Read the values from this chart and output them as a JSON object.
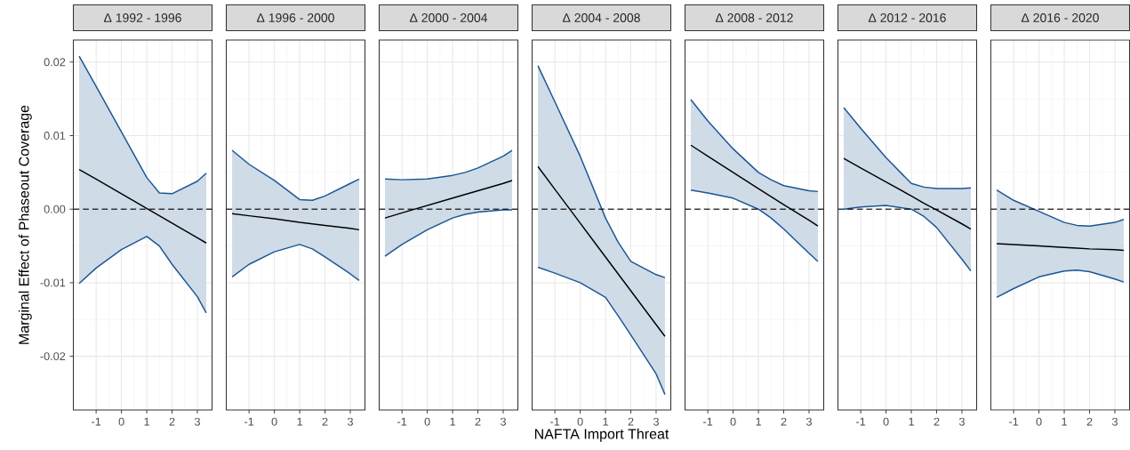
{
  "chart_data": [
    {
      "type": "line",
      "title": "Δ 1992 - 1996",
      "ylabel": "Marginal Effect of Phaseout Coverage",
      "x": [
        -1.67,
        -1,
        0,
        1,
        1.5,
        2,
        3,
        3.35
      ],
      "xlim": [
        -1.9,
        3.58
      ],
      "xticks": [
        -1,
        0,
        1,
        2,
        3
      ],
      "ylim": [
        -0.0273,
        0.023
      ],
      "yticks": [
        -0.02,
        -0.01,
        {
          "value": 0,
          "label": "0.00"
        },
        0.01,
        0.02
      ],
      "grid": true,
      "series": [
        {
          "color": "#000000",
          "values": [
            0.0054,
            0.0041,
            0.0021,
            0.0001,
            -0.0009,
            -0.0019,
            -0.0039,
            -0.0046
          ],
          "lower": [
            -0.0101,
            -0.008,
            -0.0055,
            -0.0037,
            -0.005,
            -0.0075,
            -0.0119,
            -0.0141
          ],
          "upper": [
            0.0208,
            0.0167,
            0.0105,
            0.0043,
            0.0022,
            0.0021,
            0.0038,
            0.0049
          ]
        },
        {
          "color": "#1a5694",
          "values": [
            0.0208,
            0.0167,
            0.0105,
            0.0043,
            0.0022,
            0.0021,
            0.0038,
            0.0049
          ]
        },
        {
          "color": "#1a5694",
          "values": [
            -0.0101,
            -0.008,
            -0.0055,
            -0.0037,
            -0.005,
            -0.0075,
            -0.0119,
            -0.0141
          ]
        }
      ],
      "ref_lines": [
        {
          "axis": "y",
          "value": 0,
          "color": "#000000",
          "line_style": "dashed"
        }
      ]
    },
    {
      "type": "line",
      "title": "Δ 1996 - 2000",
      "x": [
        -1.67,
        -1,
        0,
        1,
        1.5,
        2,
        3,
        3.35
      ],
      "xlim": [
        -1.9,
        3.58
      ],
      "xticks": [
        -1,
        0,
        1,
        2,
        3
      ],
      "ylim": [
        -0.0273,
        0.023
      ],
      "yticks": [
        -0.02,
        -0.01,
        0,
        0.01,
        0.02
      ],
      "grid": true,
      "tick_labels": "x",
      "series": [
        {
          "color": "#000000",
          "values": [
            -0.0006,
            -0.0009,
            -0.0013,
            -0.0018,
            -0.002,
            -0.0022,
            -0.0026,
            -0.0028
          ],
          "lower": [
            -0.0092,
            -0.0075,
            -0.0058,
            -0.0048,
            -0.0054,
            -0.0065,
            -0.0088,
            -0.0097
          ],
          "upper": [
            0.008,
            0.0061,
            0.0039,
            0.0013,
            0.0012,
            0.0018,
            0.0035,
            0.0041
          ]
        },
        {
          "color": "#1a5694",
          "values": [
            0.008,
            0.0061,
            0.0039,
            0.0013,
            0.0012,
            0.0018,
            0.0035,
            0.0041
          ]
        },
        {
          "color": "#1a5694",
          "values": [
            -0.0092,
            -0.0075,
            -0.0058,
            -0.0048,
            -0.0054,
            -0.0065,
            -0.0088,
            -0.0097
          ]
        }
      ],
      "ref_lines": [
        {
          "axis": "y",
          "value": 0,
          "color": "#000000",
          "line_style": "dashed"
        }
      ]
    },
    {
      "type": "line",
      "title": "Δ 2000 - 2004",
      "x": [
        -1.67,
        -1,
        0,
        1,
        1.5,
        2,
        3,
        3.35
      ],
      "xlim": [
        -1.9,
        3.58
      ],
      "xticks": [
        -1,
        0,
        1,
        2,
        3
      ],
      "ylim": [
        -0.0273,
        0.023
      ],
      "yticks": [
        -0.02,
        -0.01,
        0,
        0.01,
        0.02
      ],
      "grid": true,
      "tick_labels": "x",
      "series": [
        {
          "color": "#000000",
          "values": [
            -0.0012,
            -0.0005,
            0.0005,
            0.0015,
            0.002,
            0.0025,
            0.0035,
            0.0039
          ],
          "lower": [
            -0.0064,
            -0.0048,
            -0.0028,
            -0.0012,
            -0.0007,
            -0.0004,
            -0.0001,
            -0.0001
          ],
          "upper": [
            0.0041,
            0.004,
            0.0041,
            0.0046,
            0.005,
            0.0056,
            0.0072,
            0.008
          ]
        },
        {
          "color": "#1a5694",
          "values": [
            0.0041,
            0.004,
            0.0041,
            0.0046,
            0.005,
            0.0056,
            0.0072,
            0.008
          ]
        },
        {
          "color": "#1a5694",
          "values": [
            -0.0064,
            -0.0048,
            -0.0028,
            -0.0012,
            -0.0007,
            -0.0004,
            -0.0001,
            -0.0001
          ]
        }
      ],
      "ref_lines": [
        {
          "axis": "y",
          "value": 0,
          "color": "#000000",
          "line_style": "dashed"
        }
      ]
    },
    {
      "type": "line",
      "title": "Δ 2004 - 2008",
      "xlabel": "NAFTA Import Threat",
      "x": [
        -1.67,
        -1,
        0,
        1,
        1.5,
        2,
        3,
        3.35
      ],
      "xlim": [
        -1.9,
        3.58
      ],
      "xticks": [
        -1,
        0,
        1,
        2,
        3
      ],
      "ylim": [
        -0.0273,
        0.023
      ],
      "yticks": [
        -0.02,
        -0.01,
        0,
        0.01,
        0.02
      ],
      "grid": true,
      "tick_labels": "x",
      "series": [
        {
          "color": "#000000",
          "values": [
            0.0058,
            0.0027,
            -0.0019,
            -0.0065,
            -0.0088,
            -0.0111,
            -0.0157,
            -0.0173
          ],
          "lower": [
            -0.0079,
            -0.0087,
            -0.01,
            -0.012,
            -0.0145,
            -0.0171,
            -0.0224,
            -0.0252
          ],
          "upper": [
            0.0195,
            0.0146,
            0.0072,
            -0.0012,
            -0.0045,
            -0.0071,
            -0.0089,
            -0.0093
          ]
        },
        {
          "color": "#1a5694",
          "values": [
            0.0195,
            0.0146,
            0.0072,
            -0.0012,
            -0.0045,
            -0.0071,
            -0.0089,
            -0.0093
          ]
        },
        {
          "color": "#1a5694",
          "values": [
            -0.0079,
            -0.0087,
            -0.01,
            -0.012,
            -0.0145,
            -0.0171,
            -0.0224,
            -0.0252
          ]
        }
      ],
      "ref_lines": [
        {
          "axis": "y",
          "value": 0,
          "color": "#000000",
          "line_style": "dashed"
        }
      ]
    },
    {
      "type": "line",
      "title": "Δ 2008 - 2012",
      "x": [
        -1.67,
        -1,
        0,
        1,
        1.5,
        2,
        3,
        3.35
      ],
      "xlim": [
        -1.9,
        3.58
      ],
      "xticks": [
        -1,
        0,
        1,
        2,
        3
      ],
      "ylim": [
        -0.0273,
        0.023
      ],
      "yticks": [
        -0.02,
        -0.01,
        0,
        0.01,
        0.02
      ],
      "grid": true,
      "tick_labels": "x",
      "series": [
        {
          "color": "#000000",
          "values": [
            0.0087,
            0.0072,
            0.005,
            0.0028,
            0.0017,
            0.0006,
            -0.0015,
            -0.0023
          ],
          "lower": [
            0.0026,
            0.0022,
            0.0015,
            0.0,
            -0.0012,
            -0.0027,
            -0.006,
            -0.0071
          ],
          "upper": [
            0.0149,
            0.012,
            0.0082,
            0.005,
            0.004,
            0.0032,
            0.0025,
            0.0024
          ]
        },
        {
          "color": "#1a5694",
          "values": [
            0.0149,
            0.012,
            0.0082,
            0.005,
            0.004,
            0.0032,
            0.0025,
            0.0024
          ]
        },
        {
          "color": "#1a5694",
          "values": [
            0.0026,
            0.0022,
            0.0015,
            0.0,
            -0.0012,
            -0.0027,
            -0.006,
            -0.0071
          ]
        }
      ],
      "ref_lines": [
        {
          "axis": "y",
          "value": 0,
          "color": "#000000",
          "line_style": "dashed"
        }
      ]
    },
    {
      "type": "line",
      "title": "Δ 2012 - 2016",
      "x": [
        -1.67,
        -1,
        0,
        1,
        1.5,
        2,
        3,
        3.35
      ],
      "xlim": [
        -1.9,
        3.58
      ],
      "xticks": [
        -1,
        0,
        1,
        2,
        3
      ],
      "ylim": [
        -0.0273,
        0.023
      ],
      "yticks": [
        -0.02,
        -0.01,
        0,
        0.01,
        0.02
      ],
      "grid": true,
      "tick_labels": "x",
      "series": [
        {
          "color": "#000000",
          "values": [
            0.0069,
            0.0056,
            0.0037,
            0.0018,
            0.0008,
            -0.0001,
            -0.002,
            -0.0027
          ],
          "lower": [
            0.0,
            0.0003,
            0.0005,
            0.0,
            -0.001,
            -0.0025,
            -0.0068,
            -0.0084
          ],
          "upper": [
            0.0138,
            0.011,
            0.007,
            0.0035,
            0.003,
            0.0028,
            0.0028,
            0.0029
          ]
        },
        {
          "color": "#1a5694",
          "values": [
            0.0138,
            0.011,
            0.007,
            0.0035,
            0.003,
            0.0028,
            0.0028,
            0.0029
          ]
        },
        {
          "color": "#1a5694",
          "values": [
            0.0,
            0.0003,
            0.0005,
            0.0,
            -0.001,
            -0.0025,
            -0.0068,
            -0.0084
          ]
        }
      ],
      "ref_lines": [
        {
          "axis": "y",
          "value": 0,
          "color": "#000000",
          "line_style": "dashed"
        }
      ]
    },
    {
      "type": "line",
      "title": "Δ 2016 - 2020",
      "x": [
        -1.67,
        -1,
        0,
        1,
        1.5,
        2,
        3,
        3.35
      ],
      "xlim": [
        -1.9,
        3.58
      ],
      "xticks": [
        -1,
        0,
        1,
        2,
        3
      ],
      "ylim": [
        -0.0273,
        0.023
      ],
      "yticks": [
        -0.02,
        -0.01,
        0,
        0.01,
        0.02
      ],
      "grid": true,
      "tick_labels": "x",
      "series": [
        {
          "color": "#000000",
          "values": [
            -0.0047,
            -0.0048,
            -0.005,
            -0.0052,
            -0.0053,
            -0.0054,
            -0.0055,
            -0.0056
          ],
          "lower": [
            -0.012,
            -0.0108,
            -0.0092,
            -0.0084,
            -0.0083,
            -0.0085,
            -0.0095,
            -0.0099
          ],
          "upper": [
            0.0026,
            0.0012,
            -0.0003,
            -0.0018,
            -0.0022,
            -0.0023,
            -0.0018,
            -0.0014
          ]
        },
        {
          "color": "#1a5694",
          "values": [
            0.0026,
            0.0012,
            -0.0003,
            -0.0018,
            -0.0022,
            -0.0023,
            -0.0018,
            -0.0014
          ]
        },
        {
          "color": "#1a5694",
          "values": [
            -0.012,
            -0.0108,
            -0.0092,
            -0.0084,
            -0.0083,
            -0.0085,
            -0.0095,
            -0.0099
          ]
        }
      ],
      "ref_lines": [
        {
          "axis": "y",
          "value": 0,
          "color": "#000000",
          "line_style": "dashed"
        }
      ]
    }
  ]
}
